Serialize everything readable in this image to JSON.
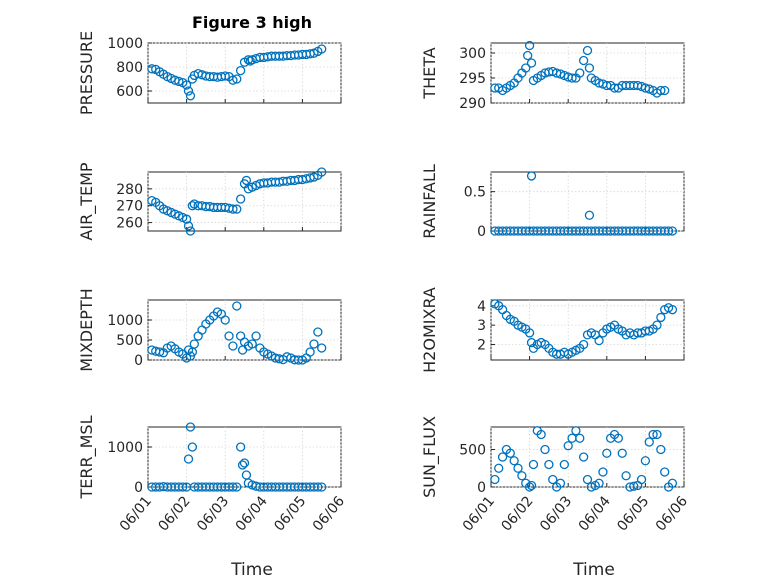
{
  "figure": {
    "title": "Figure 3 high",
    "xlabel": "Time",
    "marker_color": "#0072BD",
    "x_ticks": [
      "06/01",
      "06/02",
      "06/03",
      "06/04",
      "06/05",
      "06/06"
    ]
  },
  "chart_data": [
    {
      "type": "scatter",
      "ylabel": "PRESSURE",
      "ylim": [
        500,
        1000
      ],
      "yticks": [
        600,
        800,
        1000
      ],
      "xlim": [
        0,
        5
      ],
      "grid": true,
      "series": [
        {
          "x": [
            0.1,
            0.2,
            0.3,
            0.4,
            0.5,
            0.6,
            0.7,
            0.8,
            0.9,
            1.0,
            1.05,
            1.1,
            1.15,
            1.2,
            1.3,
            1.4,
            1.5,
            1.6,
            1.7,
            1.8,
            1.9,
            2.0,
            2.1,
            2.2,
            2.3,
            2.4,
            2.5,
            2.6,
            2.65,
            2.7,
            2.8,
            2.9,
            3.0,
            3.1,
            3.2,
            3.3,
            3.4,
            3.5,
            3.6,
            3.7,
            3.8,
            3.9,
            4.0,
            4.1,
            4.2,
            4.3,
            4.4,
            4.5
          ],
          "y": [
            785,
            780,
            760,
            740,
            720,
            705,
            690,
            680,
            670,
            650,
            600,
            560,
            700,
            730,
            745,
            735,
            725,
            720,
            720,
            715,
            720,
            725,
            720,
            690,
            700,
            770,
            840,
            860,
            850,
            860,
            870,
            880,
            880,
            885,
            890,
            890,
            890,
            890,
            895,
            895,
            900,
            900,
            905,
            905,
            910,
            915,
            930,
            950
          ]
        }
      ]
    },
    {
      "type": "scatter",
      "ylabel": "THETA",
      "ylim": [
        290,
        302
      ],
      "yticks": [
        290,
        295,
        300
      ],
      "xlim": [
        0,
        5
      ],
      "grid": true,
      "series": [
        {
          "x": [
            0.1,
            0.2,
            0.3,
            0.4,
            0.5,
            0.6,
            0.7,
            0.8,
            0.9,
            0.95,
            1.0,
            1.05,
            1.1,
            1.2,
            1.3,
            1.4,
            1.5,
            1.6,
            1.7,
            1.8,
            1.9,
            2.0,
            2.1,
            2.2,
            2.3,
            2.4,
            2.5,
            2.55,
            2.6,
            2.7,
            2.8,
            2.9,
            3.0,
            3.1,
            3.2,
            3.3,
            3.4,
            3.5,
            3.6,
            3.7,
            3.8,
            3.9,
            4.0,
            4.1,
            4.2,
            4.3,
            4.4,
            4.5
          ],
          "y": [
            293,
            293,
            292.5,
            293,
            293.5,
            294,
            295,
            296,
            297,
            299.5,
            301.5,
            298,
            294.5,
            295,
            295.5,
            296,
            296.2,
            296.3,
            296,
            295.8,
            295.5,
            295.2,
            295,
            295,
            296,
            298.5,
            300.5,
            297,
            295,
            294.5,
            294,
            293.8,
            293.5,
            293.5,
            293,
            293,
            293.5,
            293.5,
            293.5,
            293.5,
            293.5,
            293.3,
            293,
            292.8,
            292.5,
            292,
            292.5,
            292.5
          ]
        }
      ]
    },
    {
      "type": "scatter",
      "ylabel": "AIR_TEMP",
      "ylim": [
        255,
        290
      ],
      "yticks": [
        260,
        270,
        280
      ],
      "xlim": [
        0,
        5
      ],
      "grid": true,
      "series": [
        {
          "x": [
            0.1,
            0.2,
            0.3,
            0.4,
            0.5,
            0.6,
            0.7,
            0.8,
            0.9,
            1.0,
            1.05,
            1.1,
            1.15,
            1.2,
            1.3,
            1.4,
            1.5,
            1.6,
            1.7,
            1.8,
            1.9,
            2.0,
            2.1,
            2.2,
            2.3,
            2.4,
            2.5,
            2.55,
            2.6,
            2.7,
            2.8,
            2.9,
            3.0,
            3.1,
            3.2,
            3.3,
            3.4,
            3.5,
            3.6,
            3.7,
            3.8,
            3.9,
            4.0,
            4.1,
            4.2,
            4.3,
            4.4,
            4.5
          ],
          "y": [
            273,
            272,
            270,
            268,
            267,
            266,
            265,
            264,
            263,
            262,
            258,
            255,
            270,
            271,
            270,
            270,
            269.5,
            269.5,
            269,
            269,
            269,
            269,
            268.5,
            268,
            268,
            274,
            283,
            285,
            280,
            281,
            282,
            283,
            283.5,
            283.5,
            284,
            284,
            284,
            284.5,
            284.5,
            285,
            285,
            285.5,
            285.5,
            286,
            286.5,
            287,
            288,
            290
          ]
        }
      ]
    },
    {
      "type": "scatter",
      "ylabel": "RAINFALL",
      "ylim": [
        0,
        0.75
      ],
      "yticks": [
        0,
        0.5
      ],
      "xlim": [
        0,
        5
      ],
      "grid": true,
      "series": [
        {
          "x": [
            0.1,
            0.2,
            0.3,
            0.4,
            0.5,
            0.6,
            0.7,
            0.8,
            0.9,
            1.0,
            1.05,
            1.1,
            1.2,
            1.3,
            1.4,
            1.5,
            1.6,
            1.7,
            1.8,
            1.9,
            2.0,
            2.1,
            2.2,
            2.3,
            2.4,
            2.5,
            2.55,
            2.6,
            2.7,
            2.8,
            2.9,
            3.0,
            3.1,
            3.2,
            3.3,
            3.4,
            3.5,
            3.6,
            3.7,
            3.8,
            3.9,
            4.0,
            4.1,
            4.2,
            4.3,
            4.4,
            4.5,
            4.6,
            4.7
          ],
          "y": [
            0,
            0,
            0,
            0,
            0,
            0,
            0,
            0,
            0,
            0,
            0.7,
            0,
            0,
            0,
            0,
            0,
            0,
            0,
            0,
            0,
            0,
            0,
            0,
            0,
            0,
            0,
            0.2,
            0,
            0,
            0,
            0,
            0,
            0,
            0,
            0,
            0,
            0,
            0,
            0,
            0,
            0,
            0,
            0,
            0,
            0,
            0,
            0,
            0,
            0
          ]
        }
      ]
    },
    {
      "type": "scatter",
      "ylabel": "MIXDEPTH",
      "ylim": [
        0,
        1500
      ],
      "yticks": [
        0,
        500,
        1000
      ],
      "xlim": [
        0,
        5
      ],
      "grid": true,
      "series": [
        {
          "x": [
            0.1,
            0.2,
            0.3,
            0.4,
            0.5,
            0.6,
            0.7,
            0.8,
            0.9,
            1.0,
            1.05,
            1.1,
            1.15,
            1.2,
            1.3,
            1.4,
            1.5,
            1.6,
            1.7,
            1.8,
            1.9,
            2.0,
            2.1,
            2.2,
            2.3,
            2.4,
            2.45,
            2.5,
            2.6,
            2.7,
            2.8,
            2.9,
            3.0,
            3.1,
            3.2,
            3.3,
            3.4,
            3.5,
            3.6,
            3.7,
            3.8,
            3.9,
            4.0,
            4.1,
            4.2,
            4.3,
            4.4,
            4.5
          ],
          "y": [
            250,
            220,
            200,
            180,
            300,
            350,
            280,
            200,
            150,
            50,
            250,
            100,
            200,
            400,
            600,
            750,
            900,
            1000,
            1100,
            1200,
            1150,
            1000,
            600,
            350,
            1350,
            600,
            250,
            450,
            350,
            400,
            600,
            300,
            200,
            150,
            100,
            50,
            30,
            10,
            80,
            50,
            5,
            0,
            0,
            50,
            200,
            400,
            700,
            300
          ]
        }
      ]
    },
    {
      "type": "scatter",
      "ylabel": "H2OMIXRA",
      "ylim": [
        1.2,
        4.3
      ],
      "yticks": [
        2,
        3,
        4
      ],
      "xlim": [
        0,
        5
      ],
      "grid": true,
      "series": [
        {
          "x": [
            0.1,
            0.2,
            0.3,
            0.4,
            0.5,
            0.6,
            0.7,
            0.8,
            0.9,
            1.0,
            1.05,
            1.1,
            1.2,
            1.3,
            1.4,
            1.5,
            1.6,
            1.7,
            1.8,
            1.9,
            2.0,
            2.1,
            2.2,
            2.3,
            2.4,
            2.5,
            2.6,
            2.7,
            2.8,
            2.9,
            3.0,
            3.1,
            3.2,
            3.3,
            3.4,
            3.5,
            3.6,
            3.7,
            3.8,
            3.9,
            4.0,
            4.1,
            4.2,
            4.3,
            4.4,
            4.5,
            4.6,
            4.7
          ],
          "y": [
            4.1,
            4.0,
            3.8,
            3.5,
            3.3,
            3.2,
            3.0,
            2.9,
            2.8,
            2.6,
            2.1,
            1.8,
            2.0,
            2.1,
            2.0,
            1.8,
            1.6,
            1.5,
            1.5,
            1.6,
            1.5,
            1.6,
            1.7,
            1.8,
            2.0,
            2.5,
            2.6,
            2.5,
            2.2,
            2.6,
            2.8,
            2.9,
            3.0,
            2.8,
            2.7,
            2.5,
            2.6,
            2.5,
            2.6,
            2.6,
            2.7,
            2.7,
            2.8,
            3.0,
            3.4,
            3.8,
            3.9,
            3.8
          ]
        }
      ]
    },
    {
      "type": "scatter",
      "ylabel": "TERR_MSL",
      "ylim": [
        0,
        1500
      ],
      "yticks": [
        0,
        1000
      ],
      "xlim": [
        0,
        5
      ],
      "grid": true,
      "series": [
        {
          "x": [
            0.1,
            0.2,
            0.3,
            0.4,
            0.5,
            0.6,
            0.7,
            0.8,
            0.9,
            1.0,
            1.05,
            1.1,
            1.15,
            1.2,
            1.3,
            1.4,
            1.5,
            1.6,
            1.7,
            1.8,
            1.9,
            2.0,
            2.1,
            2.2,
            2.3,
            2.4,
            2.45,
            2.5,
            2.55,
            2.6,
            2.7,
            2.8,
            2.9,
            3.0,
            3.1,
            3.2,
            3.3,
            3.4,
            3.5,
            3.6,
            3.7,
            3.8,
            3.9,
            4.0,
            4.1,
            4.2,
            4.3,
            4.4,
            4.5
          ],
          "y": [
            0,
            0,
            0,
            10,
            0,
            0,
            0,
            0,
            0,
            0,
            700,
            1500,
            1000,
            0,
            0,
            0,
            0,
            0,
            0,
            0,
            0,
            0,
            0,
            0,
            0,
            1000,
            550,
            600,
            300,
            100,
            50,
            20,
            0,
            0,
            0,
            0,
            0,
            0,
            0,
            0,
            0,
            0,
            0,
            0,
            0,
            0,
            0,
            0,
            0
          ]
        }
      ]
    },
    {
      "type": "scatter",
      "ylabel": "SUN_FLUX",
      "ylim": [
        0,
        800
      ],
      "yticks": [
        0,
        500
      ],
      "xlim": [
        0,
        5
      ],
      "grid": true,
      "series": [
        {
          "x": [
            0.1,
            0.2,
            0.3,
            0.4,
            0.5,
            0.6,
            0.7,
            0.8,
            0.9,
            1.0,
            1.05,
            1.1,
            1.2,
            1.3,
            1.4,
            1.5,
            1.6,
            1.7,
            1.8,
            1.9,
            2.0,
            2.1,
            2.2,
            2.3,
            2.4,
            2.5,
            2.6,
            2.7,
            2.8,
            2.9,
            3.0,
            3.1,
            3.2,
            3.3,
            3.4,
            3.5,
            3.6,
            3.7,
            3.8,
            3.9,
            4.0,
            4.1,
            4.2,
            4.3,
            4.4,
            4.5,
            4.6,
            4.7
          ],
          "y": [
            100,
            250,
            400,
            500,
            450,
            350,
            250,
            150,
            50,
            0,
            20,
            300,
            750,
            700,
            500,
            300,
            100,
            0,
            50,
            300,
            550,
            650,
            750,
            650,
            400,
            100,
            0,
            20,
            50,
            200,
            450,
            650,
            700,
            650,
            450,
            150,
            0,
            10,
            20,
            100,
            350,
            600,
            700,
            700,
            500,
            200,
            0,
            50
          ]
        }
      ]
    }
  ]
}
